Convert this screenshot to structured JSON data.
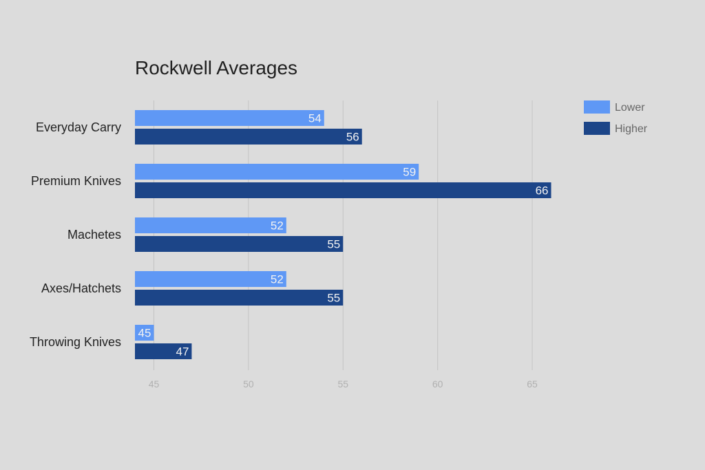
{
  "chart_data": {
    "type": "bar",
    "orientation": "horizontal",
    "title": "Rockwell Averages",
    "xlabel": "",
    "ylabel": "",
    "categories": [
      "Everyday Carry",
      "Premium Knives",
      "Machetes",
      "Axes/Hatchets",
      "Throwing Knives"
    ],
    "series": [
      {
        "name": "Lower",
        "color": "#5f98f5",
        "values": [
          54,
          59,
          52,
          52,
          45
        ]
      },
      {
        "name": "Higher",
        "color": "#1c4588",
        "values": [
          56,
          66,
          55,
          55,
          47
        ]
      }
    ],
    "xlim": [
      44,
      67
    ],
    "xticks": [
      45,
      50,
      55,
      60,
      65
    ],
    "grid": true,
    "legend_position": "top-right",
    "data_labels": true
  }
}
